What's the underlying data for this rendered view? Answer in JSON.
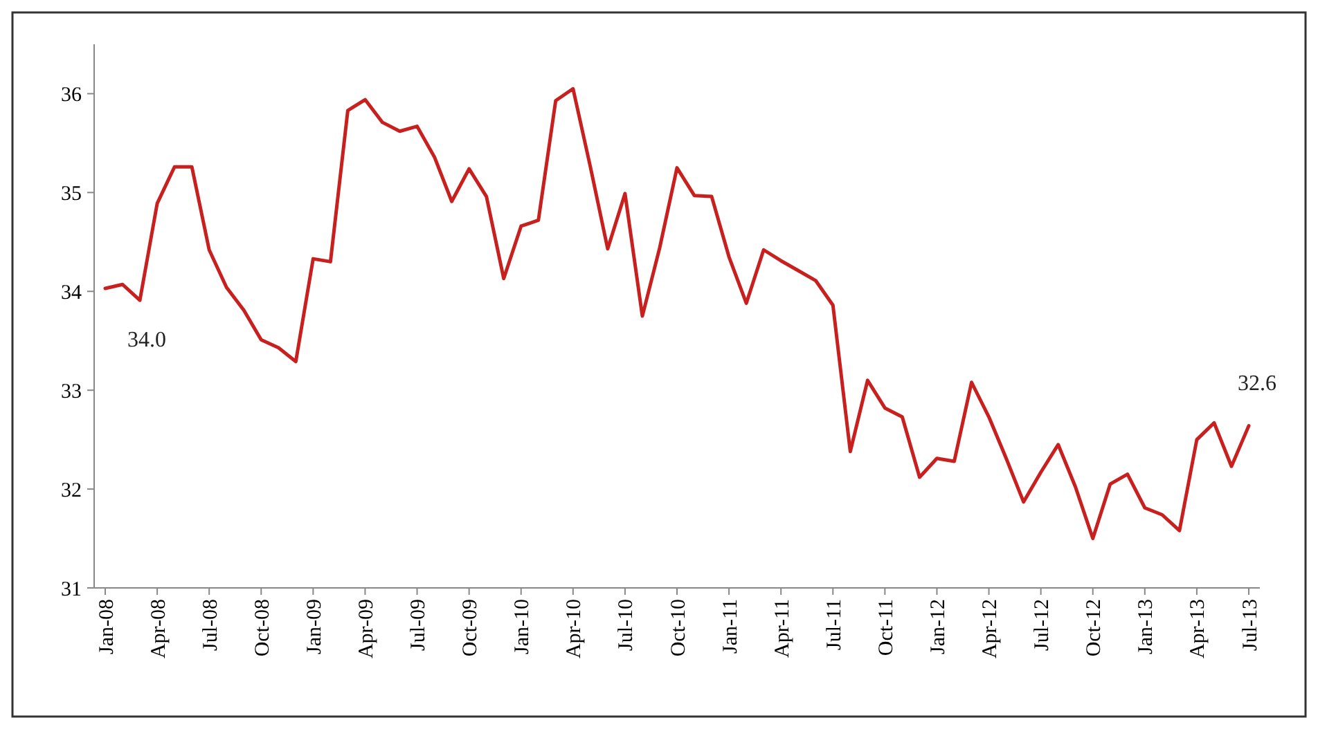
{
  "chart_data": {
    "type": "line",
    "categories": [
      "Jan-08",
      null,
      null,
      "Apr-08",
      null,
      null,
      "Jul-08",
      null,
      null,
      "Oct-08",
      null,
      null,
      "Jan-09",
      null,
      null,
      "Apr-09",
      null,
      null,
      "Jul-09",
      null,
      null,
      "Oct-09",
      null,
      null,
      "Jan-10",
      null,
      null,
      "Apr-10",
      null,
      null,
      "Jul-10",
      null,
      null,
      "Oct-10",
      null,
      null,
      "Jan-11",
      null,
      null,
      "Apr-11",
      null,
      null,
      "Jul-11",
      null,
      null,
      "Oct-11",
      null,
      null,
      "Jan-12",
      null,
      null,
      "Apr-12",
      null,
      null,
      "Jul-12",
      null,
      null,
      "Oct-12",
      null,
      null,
      "Jan-13",
      null,
      null,
      "Apr-13",
      null,
      null,
      "Jul-13"
    ],
    "series": [
      {
        "color": "#c8201e",
        "values": [
          34.03,
          34.07,
          33.91,
          34.89,
          35.26,
          35.26,
          34.42,
          34.04,
          33.81,
          33.51,
          33.43,
          33.29,
          34.33,
          34.3,
          35.83,
          35.94,
          35.71,
          35.62,
          35.67,
          35.36,
          34.91,
          35.24,
          34.96,
          34.13,
          34.66,
          34.72,
          35.93,
          36.05,
          35.26,
          34.43,
          34.99,
          33.75,
          34.44,
          35.25,
          34.97,
          34.96,
          34.35,
          33.88,
          34.42,
          34.31,
          34.21,
          34.11,
          33.86,
          32.38,
          33.1,
          32.82,
          32.73,
          32.12,
          32.31,
          32.28,
          33.08,
          32.73,
          32.31,
          31.87,
          32.17,
          32.45,
          32.02,
          31.5,
          32.05,
          32.15,
          31.81,
          31.74,
          31.58,
          32.5,
          32.67,
          32.23,
          32.64
        ],
        "value_labels": [
          "34.0",
          null,
          null,
          null,
          null,
          null,
          null,
          null,
          null,
          null,
          null,
          null,
          null,
          null,
          null,
          null,
          null,
          null,
          null,
          null,
          null,
          null,
          null,
          null,
          null,
          null,
          null,
          null,
          null,
          null,
          null,
          null,
          null,
          null,
          null,
          null,
          null,
          null,
          null,
          null,
          null,
          null,
          null,
          null,
          null,
          null,
          null,
          null,
          null,
          null,
          null,
          null,
          null,
          null,
          null,
          null,
          null,
          null,
          null,
          null,
          null,
          null,
          null,
          null,
          null,
          null,
          "32.6"
        ]
      }
    ],
    "ylim": [
      31,
      36.5
    ],
    "yticks": [
      31,
      32,
      33,
      34,
      35,
      36
    ],
    "grid": false,
    "marker": "none",
    "line_style": "solid"
  }
}
